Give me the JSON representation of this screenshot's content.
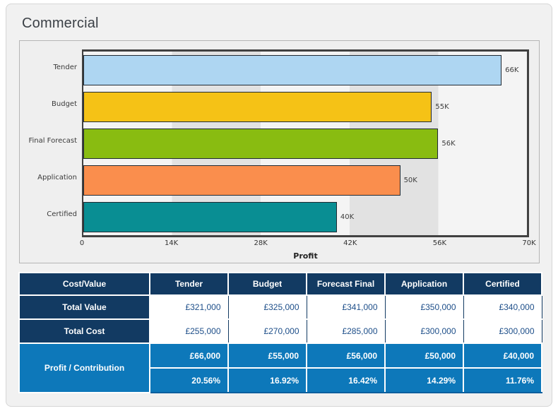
{
  "title": "Commercial",
  "chart_data": {
    "type": "bar",
    "orientation": "horizontal",
    "title": "",
    "xlabel": "Profit",
    "ylabel": "",
    "categories": [
      "Tender",
      "Budget",
      "Final Forecast",
      "Application",
      "Certified"
    ],
    "values": [
      66000,
      55000,
      56000,
      50000,
      40000
    ],
    "value_labels": [
      "66K",
      "55K",
      "56K",
      "50K",
      "40K"
    ],
    "bar_colors": [
      "#aed6f2",
      "#f5c216",
      "#89bc11",
      "#fa8e4d",
      "#098e93"
    ],
    "x_ticks": [
      "0",
      "14K",
      "28K",
      "42K",
      "56K",
      "70K"
    ],
    "xlim": [
      0,
      70000
    ],
    "grid": "alternating-vertical-bands",
    "legend": "none"
  },
  "table": {
    "header": [
      "Cost/Value",
      "Tender",
      "Budget",
      "Forecast Final",
      "Application",
      "Certified"
    ],
    "rows": [
      {
        "label": "Total Value",
        "values": [
          "£321,000",
          "£325,000",
          "£341,000",
          "£350,000",
          "£340,000"
        ]
      },
      {
        "label": "Total Cost",
        "values": [
          "£255,000",
          "£270,000",
          "£285,000",
          "£300,000",
          "£300,000"
        ]
      }
    ],
    "profit_row": {
      "label": "Profit / Contribution",
      "amounts": [
        "£66,000",
        "£55,000",
        "£56,000",
        "£50,000",
        "£40,000"
      ],
      "percents": [
        "20.56%",
        "16.92%",
        "16.42%",
        "14.29%",
        "11.76%"
      ]
    }
  },
  "colors": {
    "header_navy": "#123a62",
    "accent_blue": "#0d78ba",
    "value_text_blue": "#1d4e89",
    "band_light": "#f4f4f4",
    "band_dark": "#e2e2e2",
    "plot_border": "#414141",
    "card_background": "#f1f1f1"
  }
}
